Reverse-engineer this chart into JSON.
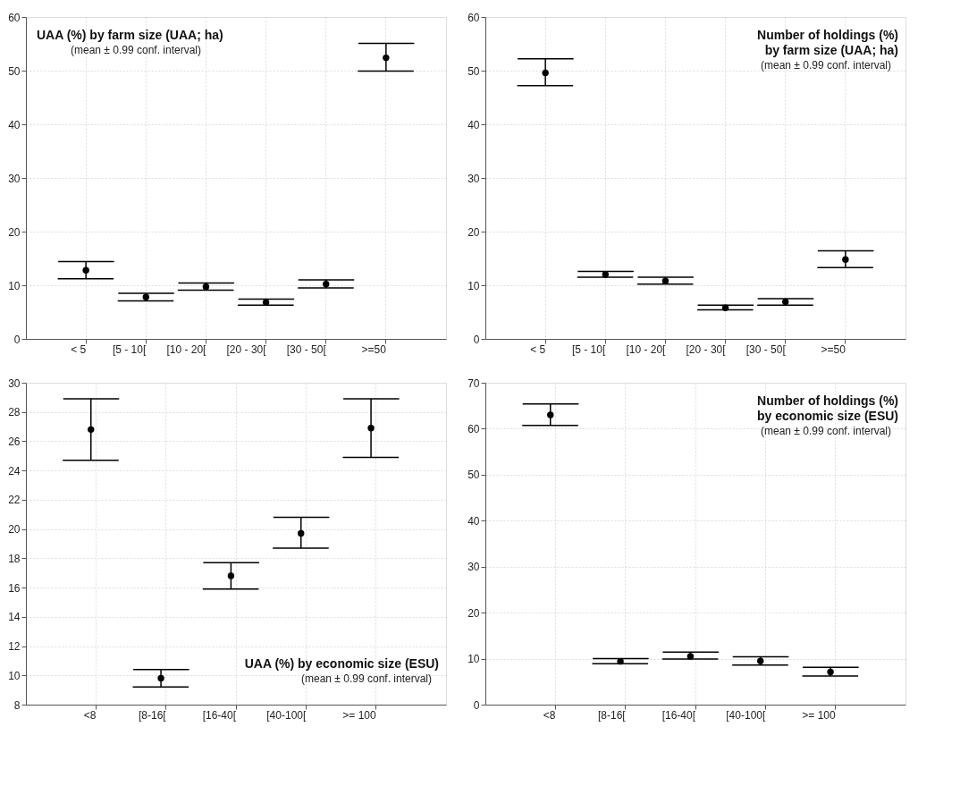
{
  "chart_data": [
    {
      "type": "scatter",
      "title": "UAA (%) by farm size (UAA; ha)",
      "subtitle": "(mean ± 0.99 conf. interval)",
      "categories": [
        "< 5",
        "[5 - 10[",
        "[10 - 20[",
        "[20 - 30[",
        "[30 - 50[",
        ">=50"
      ],
      "values": [
        12.8,
        7.8,
        9.7,
        6.8,
        10.2,
        52.4
      ],
      "errors": [
        [
          11.2,
          14.4
        ],
        [
          7.1,
          8.5
        ],
        [
          9.1,
          10.4
        ],
        [
          6.3,
          7.4
        ],
        [
          9.5,
          11.0
        ],
        [
          49.9,
          55.1
        ]
      ],
      "color": "#000000",
      "marker": "circle",
      "ylim": [
        0,
        60
      ],
      "yticks": [
        0,
        10,
        20,
        30,
        40,
        50,
        60
      ],
      "grid": true
    },
    {
      "type": "scatter",
      "title": "Number of holdings (%)\nby farm size (UAA; ha)",
      "subtitle": "(mean ± 0.99 conf. interval)",
      "categories": [
        "< 5",
        "[5 - 10[",
        "[10 - 20[",
        "[20 - 30[",
        "[30 - 50[",
        ">=50"
      ],
      "values": [
        49.6,
        12.0,
        10.8,
        5.8,
        6.9,
        14.8
      ],
      "errors": [
        [
          47.2,
          52.2
        ],
        [
          11.5,
          12.6
        ],
        [
          10.2,
          11.5
        ],
        [
          5.4,
          6.3
        ],
        [
          6.3,
          7.5
        ],
        [
          13.3,
          16.4
        ]
      ],
      "color": "#000000",
      "marker": "circle",
      "ylim": [
        0,
        60
      ],
      "yticks": [
        0,
        10,
        20,
        30,
        40,
        50,
        60
      ],
      "grid": true
    },
    {
      "type": "scatter",
      "title": "UAA (%) by economic size (ESU)",
      "subtitle": "(mean ± 0.99 conf. interval)",
      "categories": [
        "<8",
        "[8-16[",
        "[16-40[",
        "[40-100[",
        ">= 100"
      ],
      "values": [
        26.8,
        9.8,
        16.8,
        19.7,
        26.9
      ],
      "errors": [
        [
          24.7,
          28.9
        ],
        [
          9.2,
          10.4
        ],
        [
          15.9,
          17.7
        ],
        [
          18.7,
          20.8
        ],
        [
          24.9,
          28.9
        ]
      ],
      "color": "#000000",
      "marker": "circle",
      "ylim": [
        8,
        30
      ],
      "yticks": [
        8,
        10,
        12,
        14,
        16,
        18,
        20,
        22,
        24,
        26,
        28,
        30
      ],
      "grid": true
    },
    {
      "type": "scatter",
      "title": "Number of holdings (%)\nby economic size (ESU)",
      "subtitle": "(mean ± 0.99 conf. interval)",
      "categories": [
        "<8",
        "[8-16[",
        "[16-40[",
        "[40-100[",
        ">= 100"
      ],
      "values": [
        63.0,
        9.4,
        10.5,
        9.5,
        7.1
      ],
      "errors": [
        [
          60.7,
          65.4
        ],
        [
          8.9,
          10.0
        ],
        [
          9.9,
          11.4
        ],
        [
          8.6,
          10.4
        ],
        [
          6.2,
          8.1
        ]
      ],
      "color": "#000000",
      "marker": "circle",
      "ylim": [
        0,
        70
      ],
      "yticks": [
        0,
        10,
        20,
        30,
        40,
        50,
        60,
        70
      ],
      "grid": true
    }
  ]
}
